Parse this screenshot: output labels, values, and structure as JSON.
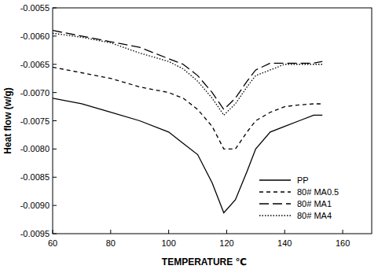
{
  "chart_data": {
    "type": "line",
    "x_label": "TEMPERATURE ℃",
    "y_label": "Heat flow (w/g)",
    "x": [
      60,
      70,
      80,
      90,
      100,
      105,
      110,
      115,
      119,
      123,
      127,
      130,
      135,
      140,
      145,
      150,
      153
    ],
    "series": [
      {
        "name": "PP",
        "color": "#000000",
        "line_style": "solid",
        "values": [
          -0.0071,
          -0.0072,
          -0.00735,
          -0.0075,
          -0.0077,
          -0.0079,
          -0.0081,
          -0.0086,
          -0.00913,
          -0.0089,
          -0.0084,
          -0.008,
          -0.0077,
          -0.0076,
          -0.0075,
          -0.0074,
          -0.0074
        ]
      },
      {
        "name": "80# MA0.5",
        "color": "#000000",
        "line_style": "dashed",
        "values": [
          -0.00655,
          -0.00665,
          -0.00675,
          -0.0069,
          -0.007,
          -0.0071,
          -0.0073,
          -0.0076,
          -0.008,
          -0.008,
          -0.0077,
          -0.0075,
          -0.00735,
          -0.00725,
          -0.00722,
          -0.0072,
          -0.0072
        ]
      },
      {
        "name": "80# MA1",
        "color": "#000000",
        "line_style": "long-dashed",
        "values": [
          -0.0059,
          -0.006,
          -0.0061,
          -0.0062,
          -0.0064,
          -0.0065,
          -0.0067,
          -0.007,
          -0.0073,
          -0.0071,
          -0.0068,
          -0.0066,
          -0.00648,
          -0.00648,
          -0.00648,
          -0.00648,
          -0.00645
        ]
      },
      {
        "name": "80# MA4",
        "color": "#000000",
        "line_style": "dotted",
        "values": [
          -0.00595,
          -0.00602,
          -0.00612,
          -0.0063,
          -0.00645,
          -0.00658,
          -0.0068,
          -0.0071,
          -0.0074,
          -0.0072,
          -0.0069,
          -0.0067,
          -0.0066,
          -0.0065,
          -0.0065,
          -0.0065,
          -0.0065
        ]
      }
    ],
    "xlim": [
      60,
      170
    ],
    "xticks": [
      60,
      80,
      100,
      120,
      140,
      160
    ],
    "ylim": [
      -0.0095,
      -0.0055
    ],
    "yticks": [
      -0.0095,
      {
        "value": -0.009,
        "label": "-0.0090"
      },
      -0.0085,
      {
        "value": -0.008,
        "label": "-0.0080"
      },
      -0.0075,
      {
        "value": -0.007,
        "label": "-0.0070"
      },
      -0.0065,
      {
        "value": -0.006,
        "label": "-0.0060"
      },
      -0.0055
    ],
    "grid": false,
    "legend": "lower right"
  }
}
